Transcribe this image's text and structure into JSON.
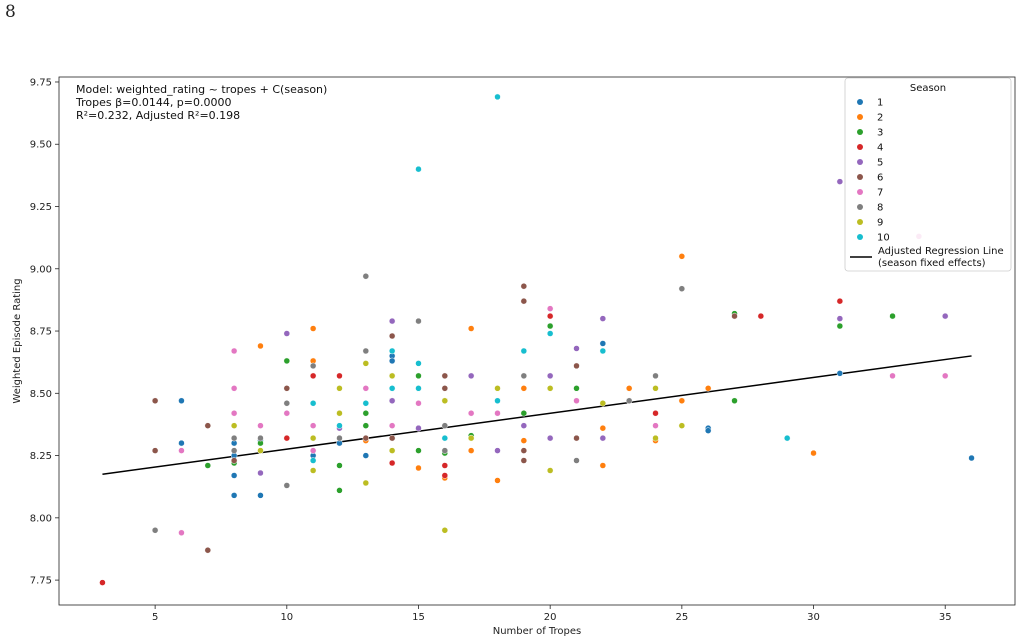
{
  "page_number": "8",
  "chart_data": {
    "type": "scatter",
    "xlabel": "Number of Tropes",
    "ylabel": "Weighted Episode Rating",
    "xlim": [
      1.35,
      37.65
    ],
    "ylim": [
      7.65,
      9.77
    ],
    "xticks": [
      5,
      10,
      15,
      20,
      25,
      30,
      35
    ],
    "yticks": [
      7.75,
      8.0,
      8.25,
      8.5,
      8.75,
      9.0,
      9.25,
      9.5,
      9.75
    ],
    "ytick_labels": [
      "7.75",
      "8.00",
      "8.25",
      "8.50",
      "8.75",
      "9.00",
      "9.25",
      "9.50",
      "9.75"
    ],
    "grid": false,
    "annotation": [
      "Model: weighted_rating ~ tropes + C(season)",
      "Tropes β=0.0144, p=0.0000",
      "R²=0.232, Adjusted R²=0.198"
    ],
    "legend": {
      "title": "Season",
      "placement": "top-right",
      "line_label": [
        "Adjusted Regression Line",
        "(season fixed effects)"
      ]
    },
    "regression_line": {
      "x": [
        3,
        36
      ],
      "y": [
        8.175,
        8.65
      ],
      "color": "#000000"
    },
    "series": [
      {
        "name": "1",
        "color": "#1f77b4",
        "points": [
          [
            6,
            8.47
          ],
          [
            6,
            8.3
          ],
          [
            8,
            8.3
          ],
          [
            8,
            8.25
          ],
          [
            8,
            8.17
          ],
          [
            8,
            8.09
          ],
          [
            9,
            8.31
          ],
          [
            9,
            8.09
          ],
          [
            11,
            8.25
          ],
          [
            12,
            8.3
          ],
          [
            13,
            8.25
          ],
          [
            14,
            8.65
          ],
          [
            14,
            8.63
          ],
          [
            15,
            8.36
          ],
          [
            22,
            8.7
          ],
          [
            26,
            8.36
          ],
          [
            26,
            8.35
          ],
          [
            31,
            8.58
          ],
          [
            36,
            8.24
          ]
        ]
      },
      {
        "name": "2",
        "color": "#ff7f0e",
        "points": [
          [
            9,
            8.69
          ],
          [
            11,
            8.76
          ],
          [
            11,
            8.63
          ],
          [
            13,
            8.31
          ],
          [
            15,
            8.2
          ],
          [
            16,
            8.16
          ],
          [
            17,
            8.76
          ],
          [
            17,
            8.27
          ],
          [
            18,
            8.15
          ],
          [
            19,
            8.52
          ],
          [
            19,
            8.31
          ],
          [
            22,
            8.36
          ],
          [
            22,
            8.21
          ],
          [
            23,
            8.52
          ],
          [
            24,
            8.31
          ],
          [
            25,
            9.05
          ],
          [
            25,
            8.47
          ],
          [
            26,
            8.52
          ],
          [
            30,
            8.26
          ]
        ]
      },
      {
        "name": "3",
        "color": "#2ca02c",
        "points": [
          [
            7,
            8.21
          ],
          [
            8,
            8.22
          ],
          [
            9,
            8.3
          ],
          [
            10,
            8.63
          ],
          [
            12,
            8.21
          ],
          [
            12,
            8.11
          ],
          [
            13,
            8.42
          ],
          [
            13,
            8.37
          ],
          [
            14,
            8.47
          ],
          [
            15,
            8.57
          ],
          [
            15,
            8.27
          ],
          [
            16,
            8.26
          ],
          [
            17,
            8.33
          ],
          [
            19,
            8.42
          ],
          [
            20,
            8.77
          ],
          [
            21,
            8.52
          ],
          [
            27,
            8.82
          ],
          [
            27,
            8.47
          ],
          [
            31,
            8.77
          ],
          [
            33,
            8.81
          ]
        ]
      },
      {
        "name": "4",
        "color": "#d62728",
        "points": [
          [
            3,
            7.74
          ],
          [
            10,
            8.32
          ],
          [
            11,
            8.57
          ],
          [
            12,
            8.57
          ],
          [
            14,
            8.22
          ],
          [
            16,
            8.21
          ],
          [
            16,
            8.17
          ],
          [
            20,
            8.81
          ],
          [
            24,
            8.42
          ],
          [
            28,
            8.81
          ],
          [
            31,
            8.87
          ]
        ]
      },
      {
        "name": "5",
        "color": "#9467bd",
        "points": [
          [
            9,
            8.18
          ],
          [
            10,
            8.74
          ],
          [
            12,
            8.36
          ],
          [
            14,
            8.79
          ],
          [
            14,
            8.47
          ],
          [
            15,
            8.36
          ],
          [
            17,
            8.57
          ],
          [
            18,
            8.27
          ],
          [
            19,
            8.37
          ],
          [
            20,
            8.57
          ],
          [
            20,
            8.32
          ],
          [
            21,
            8.68
          ],
          [
            22,
            8.8
          ],
          [
            22,
            8.32
          ],
          [
            31,
            9.35
          ],
          [
            31,
            8.8
          ],
          [
            35,
            8.81
          ]
        ]
      },
      {
        "name": "6",
        "color": "#8c564b",
        "points": [
          [
            5,
            8.47
          ],
          [
            5,
            8.27
          ],
          [
            7,
            8.37
          ],
          [
            7,
            7.87
          ],
          [
            8,
            8.23
          ],
          [
            10,
            8.52
          ],
          [
            13,
            8.32
          ],
          [
            14,
            8.73
          ],
          [
            14,
            8.32
          ],
          [
            16,
            8.57
          ],
          [
            16,
            8.52
          ],
          [
            16,
            8.47
          ],
          [
            19,
            8.93
          ],
          [
            19,
            8.87
          ],
          [
            19,
            8.27
          ],
          [
            19,
            8.23
          ],
          [
            21,
            8.61
          ],
          [
            21,
            8.32
          ],
          [
            27,
            8.81
          ]
        ]
      },
      {
        "name": "7",
        "color": "#e377c2",
        "points": [
          [
            6,
            8.27
          ],
          [
            6,
            7.94
          ],
          [
            8,
            8.67
          ],
          [
            8,
            8.52
          ],
          [
            8,
            8.42
          ],
          [
            9,
            8.37
          ],
          [
            10,
            8.42
          ],
          [
            11,
            8.37
          ],
          [
            11,
            8.27
          ],
          [
            13,
            8.52
          ],
          [
            14,
            8.37
          ],
          [
            15,
            8.46
          ],
          [
            17,
            8.42
          ],
          [
            18,
            8.42
          ],
          [
            20,
            8.84
          ],
          [
            21,
            8.47
          ],
          [
            24,
            8.37
          ],
          [
            33,
            8.57
          ],
          [
            34,
            9.13
          ],
          [
            35,
            8.57
          ]
        ]
      },
      {
        "name": "8",
        "color": "#7f7f7f",
        "points": [
          [
            5,
            7.95
          ],
          [
            8,
            8.32
          ],
          [
            8,
            8.27
          ],
          [
            9,
            8.32
          ],
          [
            9,
            8.27
          ],
          [
            10,
            8.46
          ],
          [
            10,
            8.13
          ],
          [
            11,
            8.61
          ],
          [
            12,
            8.32
          ],
          [
            13,
            8.97
          ],
          [
            13,
            8.67
          ],
          [
            14,
            8.57
          ],
          [
            15,
            8.79
          ],
          [
            16,
            8.37
          ],
          [
            16,
            8.27
          ],
          [
            19,
            8.57
          ],
          [
            21,
            8.23
          ],
          [
            23,
            8.47
          ],
          [
            24,
            8.57
          ],
          [
            25,
            8.92
          ]
        ]
      },
      {
        "name": "9",
        "color": "#bcbd22",
        "points": [
          [
            8,
            8.37
          ],
          [
            9,
            8.27
          ],
          [
            11,
            8.19
          ],
          [
            11,
            8.32
          ],
          [
            12,
            8.52
          ],
          [
            12,
            8.42
          ],
          [
            13,
            8.62
          ],
          [
            13,
            8.14
          ],
          [
            14,
            8.57
          ],
          [
            14,
            8.27
          ],
          [
            15,
            8.52
          ],
          [
            16,
            7.95
          ],
          [
            16,
            8.47
          ],
          [
            17,
            8.32
          ],
          [
            18,
            8.52
          ],
          [
            20,
            8.52
          ],
          [
            20,
            8.19
          ],
          [
            22,
            8.46
          ],
          [
            24,
            8.52
          ],
          [
            24,
            8.32
          ],
          [
            25,
            8.37
          ]
        ]
      },
      {
        "name": "10",
        "color": "#17becf",
        "points": [
          [
            11,
            8.23
          ],
          [
            11,
            8.46
          ],
          [
            12,
            8.37
          ],
          [
            13,
            8.46
          ],
          [
            14,
            8.67
          ],
          [
            14,
            8.52
          ],
          [
            15,
            9.4
          ],
          [
            15,
            8.62
          ],
          [
            15,
            8.52
          ],
          [
            16,
            8.32
          ],
          [
            18,
            9.69
          ],
          [
            18,
            8.47
          ],
          [
            19,
            8.67
          ],
          [
            20,
            8.74
          ],
          [
            22,
            8.67
          ],
          [
            29,
            8.32
          ]
        ]
      }
    ]
  }
}
